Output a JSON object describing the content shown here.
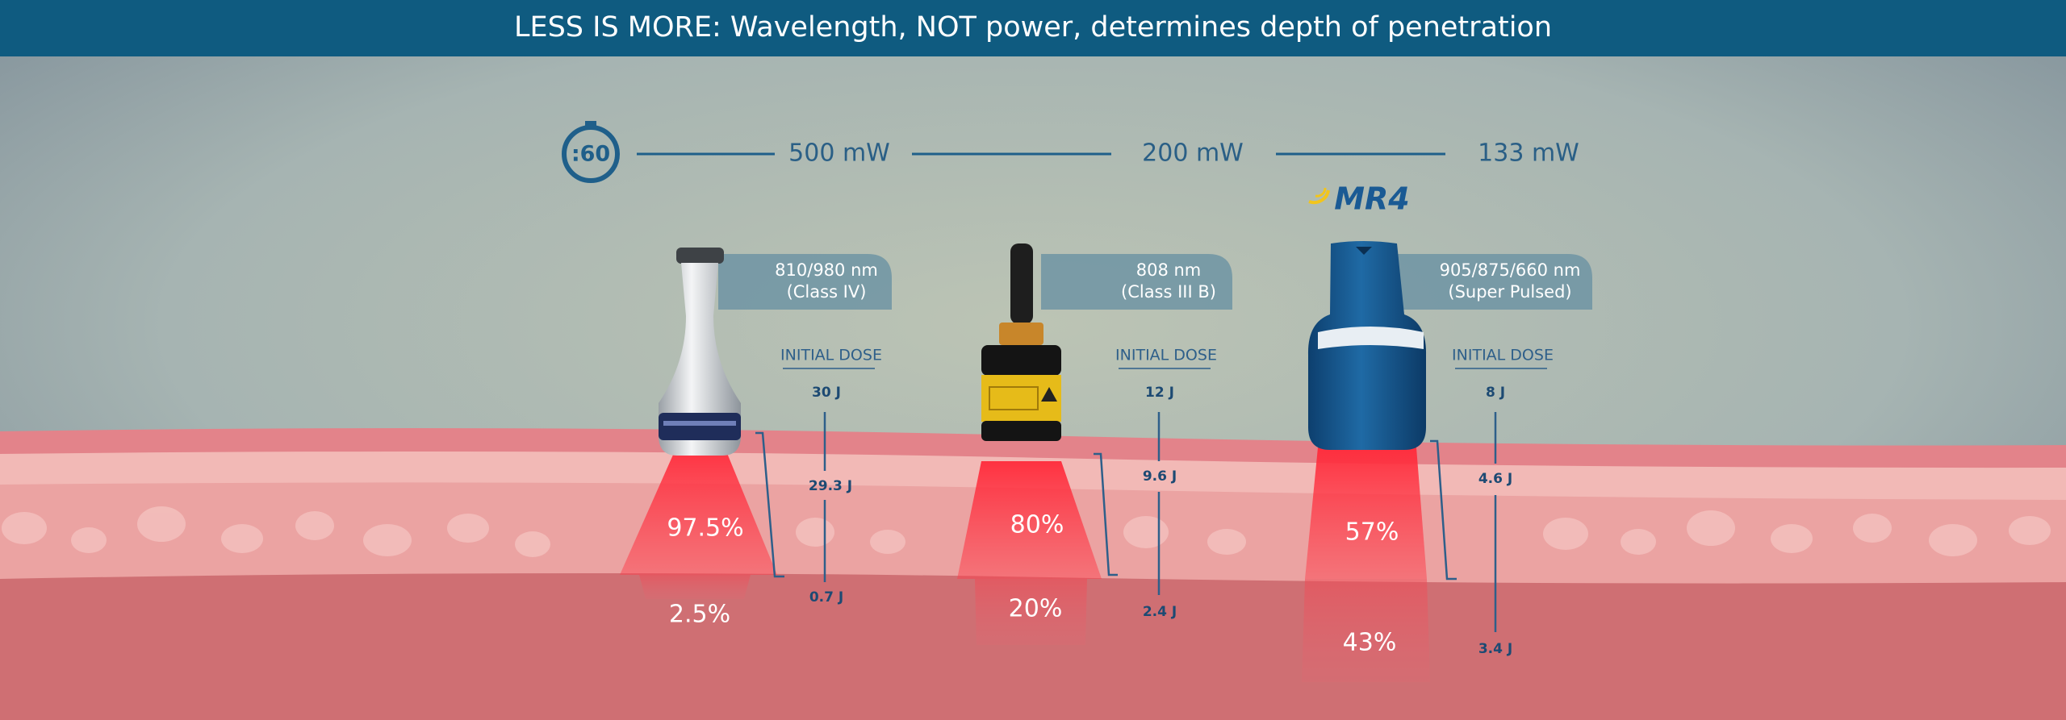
{
  "header": {
    "title": "LESS IS MORE: Wavelength, NOT power, determines depth of penetration"
  },
  "timer": ":60",
  "brand": "MR4",
  "devices": [
    {
      "power": "500 mW",
      "wavelength": "810/980 nm",
      "class": "(Class IV)",
      "dose_heading": "INITIAL DOSE",
      "initial_dose": "30 J",
      "absorbed_dose": "29.3 J",
      "transmitted_dose": "0.7 J",
      "absorbed_percent": "97.5%",
      "transmitted_percent": "2.5%"
    },
    {
      "power": "200 mW",
      "wavelength": "808 nm",
      "class": "(Class III B)",
      "dose_heading": "INITIAL DOSE",
      "initial_dose": "12 J",
      "absorbed_dose": "9.6 J",
      "transmitted_dose": "2.4 J",
      "absorbed_percent": "80%",
      "transmitted_percent": "20%"
    },
    {
      "power": "133 mW",
      "wavelength": "905/875/660 nm",
      "class": "(Super Pulsed)",
      "dose_heading": "INITIAL DOSE",
      "initial_dose": "8 J",
      "absorbed_dose": "4.6 J",
      "transmitted_dose": "3.4 J",
      "absorbed_percent": "57%",
      "transmitted_percent": "43%"
    }
  ]
}
